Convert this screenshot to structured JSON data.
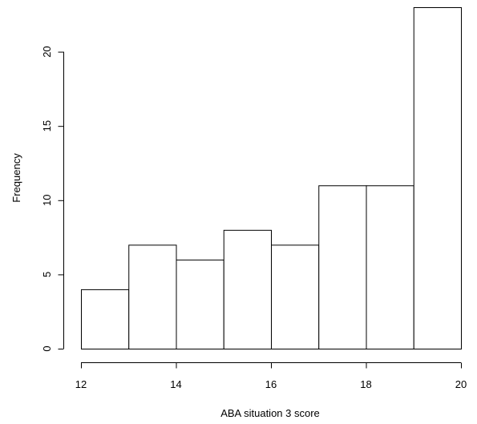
{
  "chart_data": {
    "type": "bar",
    "histogram": true,
    "title": "",
    "xlabel": "ABA situation 3 score",
    "ylabel": "Frequency",
    "bins": [
      {
        "from": 12,
        "to": 13,
        "count": 4
      },
      {
        "from": 13,
        "to": 14,
        "count": 7
      },
      {
        "from": 14,
        "to": 15,
        "count": 6
      },
      {
        "from": 15,
        "to": 16,
        "count": 8
      },
      {
        "from": 16,
        "to": 17,
        "count": 7
      },
      {
        "from": 17,
        "to": 18,
        "count": 11
      },
      {
        "from": 18,
        "to": 19,
        "count": 11
      },
      {
        "from": 19,
        "to": 20,
        "count": 23
      }
    ],
    "xlim": [
      12,
      20
    ],
    "ylim": [
      0,
      23
    ],
    "x_ticks": [
      12,
      14,
      16,
      18,
      20
    ],
    "y_ticks": [
      0,
      5,
      10,
      15,
      20
    ],
    "grid": false,
    "bar_fill": "#ffffff",
    "bar_stroke": "#000000"
  }
}
